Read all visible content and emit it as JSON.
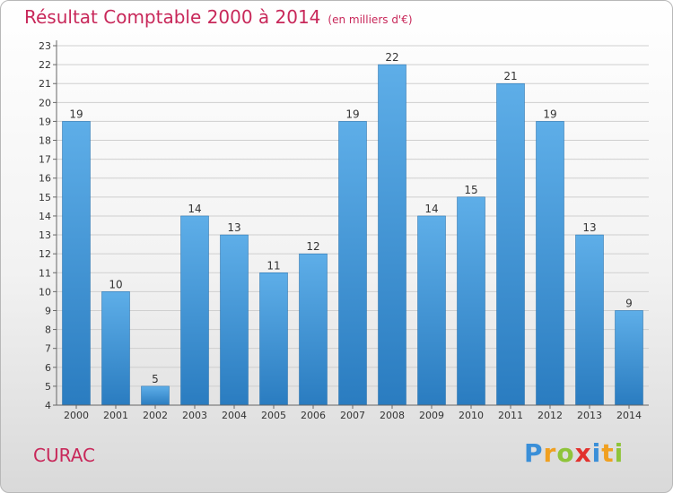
{
  "title": "Résultat Comptable 2000 à 2014",
  "unit": "(en milliers d'€)",
  "commune": "CURAC",
  "logo": [
    "P",
    "r",
    "o",
    "x",
    "i",
    "t",
    "i"
  ],
  "colors": {
    "bar_top": "#5eaee8",
    "bar_bottom": "#2a7cc0",
    "title": "#c8285a"
  },
  "chart_data": {
    "type": "bar",
    "title": "Résultat Comptable 2000 à 2014",
    "xlabel": "",
    "ylabel": "",
    "categories": [
      "2000",
      "2001",
      "2002",
      "2003",
      "2004",
      "2005",
      "2006",
      "2007",
      "2008",
      "2009",
      "2010",
      "2011",
      "2012",
      "2013",
      "2014"
    ],
    "values": [
      19,
      10,
      5,
      14,
      13,
      11,
      12,
      19,
      22,
      14,
      15,
      21,
      19,
      13,
      9
    ],
    "ylim": [
      4,
      23
    ],
    "yticks": [
      4,
      5,
      6,
      7,
      8,
      9,
      10,
      11,
      12,
      13,
      14,
      15,
      16,
      17,
      18,
      19,
      20,
      21,
      22,
      23
    ],
    "grid": true
  }
}
